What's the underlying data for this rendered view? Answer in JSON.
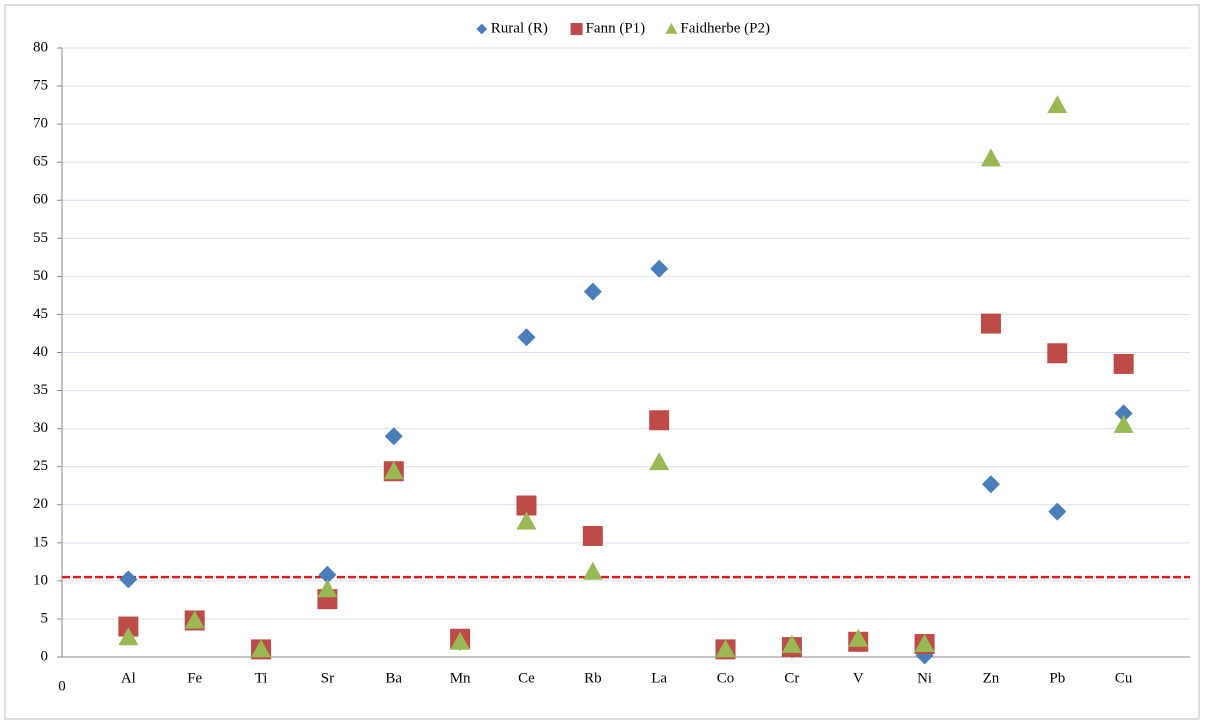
{
  "chart_data": {
    "type": "scatter",
    "categories": [
      "Al",
      "Fe",
      "Ti",
      "Sr",
      "Ba",
      "Mn",
      "Ce",
      "Rb",
      "La",
      "Co",
      "Cr",
      "V",
      "Ni",
      "Zn",
      "Pb",
      "Cu"
    ],
    "x": [
      1,
      2,
      3,
      4,
      5,
      6,
      7,
      8,
      9,
      10,
      11,
      12,
      13,
      14,
      15,
      16
    ],
    "xlim": [
      0,
      17
    ],
    "xticks": [
      0
    ],
    "ylim": [
      0,
      80
    ],
    "yticks": [
      0,
      5,
      10,
      15,
      20,
      25,
      30,
      35,
      40,
      45,
      50,
      55,
      60,
      65,
      70,
      75,
      80
    ],
    "grid": true,
    "legend": "top",
    "reference_line": {
      "value": 10.5,
      "color": "#e31a1c"
    },
    "series": [
      {
        "name": "Rural (R)",
        "color": "#4a7ebb",
        "marker": "diamond",
        "values": [
          10.2,
          4.8,
          0.8,
          10.8,
          29,
          2,
          42,
          48,
          51,
          0.8,
          1,
          1.8,
          0.2,
          22.7,
          19.1,
          32
        ]
      },
      {
        "name": "Fann (P1)",
        "color": "#be4b48",
        "marker": "square",
        "values": [
          4,
          4.8,
          1,
          7.6,
          24.4,
          2.4,
          19.9,
          15.9,
          31.1,
          1,
          1.3,
          2,
          1.7,
          43.8,
          39.9,
          38.5
        ]
      },
      {
        "name": "Faidherbe (P2)",
        "color": "#98b954",
        "marker": "triangle",
        "values": [
          2.6,
          4.8,
          1,
          8.9,
          24.4,
          2,
          17.8,
          11.2,
          25.6,
          1,
          1.6,
          2.4,
          1.7,
          65.5,
          72.5,
          30.5
        ]
      }
    ]
  }
}
